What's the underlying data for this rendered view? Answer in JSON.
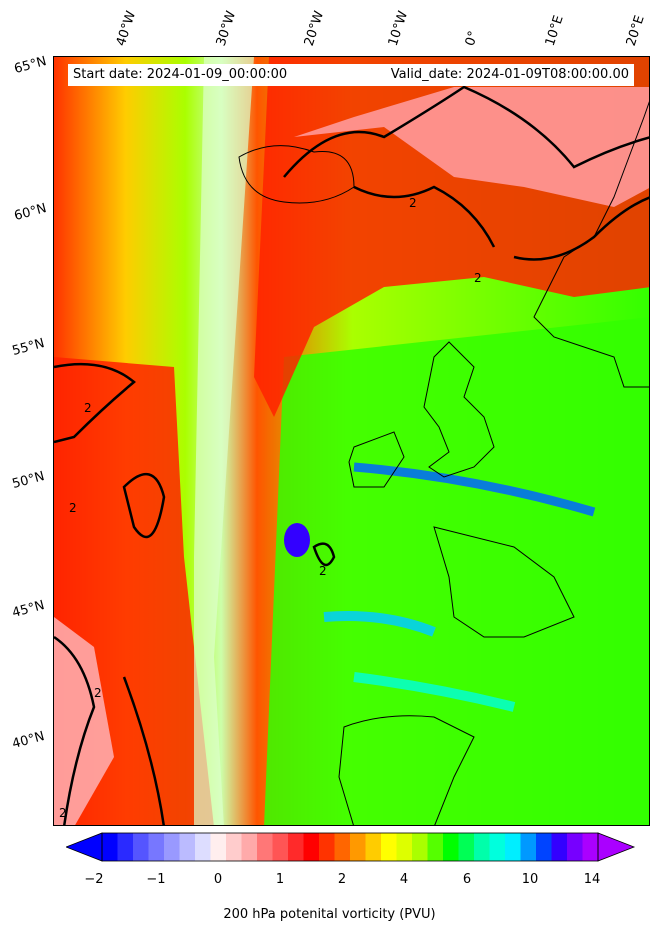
{
  "header": {
    "start_date": "Start date: 2024-01-09_00:00:00",
    "valid_date": "Valid_date: 2024-01-09T08:00:00.00"
  },
  "axes": {
    "longitude_labels": [
      "40°W",
      "30°W",
      "20°W",
      "10°W",
      "0°",
      "10°E",
      "20°E"
    ],
    "latitude_labels": [
      "65°N",
      "60°N",
      "55°N",
      "50°N",
      "45°N",
      "40°N"
    ]
  },
  "field": {
    "variable": "200 hPa potential vorticity",
    "contour_value_label": "2"
  },
  "colorbar": {
    "title": "200 hPa potenital vorticity (PVU)",
    "ticks": [
      "−2",
      "−1",
      "0",
      "1",
      "2",
      "4",
      "6",
      "10",
      "14"
    ],
    "colors": [
      "#0000ff",
      "#2a2aff",
      "#5555ff",
      "#7777ff",
      "#9999ff",
      "#bbbbff",
      "#ddddff",
      "#ffeeee",
      "#ffcccc",
      "#ffaaaa",
      "#ff7777",
      "#ff5555",
      "#ff2a2a",
      "#ff0000",
      "#ff3300",
      "#ff6600",
      "#ff9900",
      "#ffcc00",
      "#ffff00",
      "#ddff00",
      "#aaff00",
      "#55ff00",
      "#00ff00",
      "#00ff55",
      "#00ffaa",
      "#00ffdd",
      "#00eeff",
      "#0099ff",
      "#0044ff",
      "#3300ff",
      "#7700ff",
      "#aa00ff"
    ],
    "extend_low_color": "#0000ff",
    "extend_high_color": "#aa00ff"
  }
}
